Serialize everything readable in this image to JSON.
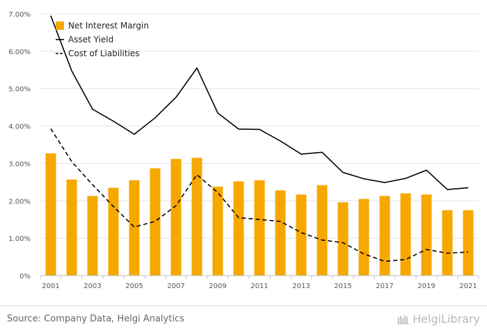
{
  "chart_data": {
    "type": "bar",
    "categories": [
      "2001",
      "2002",
      "2003",
      "2004",
      "2005",
      "2006",
      "2007",
      "2008",
      "2009",
      "2010",
      "2011",
      "2012",
      "2013",
      "2014",
      "2015",
      "2016",
      "2017",
      "2018",
      "2019",
      "2020",
      "2021"
    ],
    "x_tick_labels": [
      "2001",
      "2003",
      "2005",
      "2007",
      "2009",
      "2011",
      "2013",
      "2015",
      "2017",
      "2019",
      "2021"
    ],
    "series": [
      {
        "name": "Net Interest Margin",
        "kind": "bar",
        "color": "#f7a800",
        "values": [
          3.27,
          2.57,
          2.13,
          2.35,
          2.55,
          2.87,
          3.12,
          3.15,
          2.38,
          2.52,
          2.55,
          2.28,
          2.17,
          2.42,
          1.96,
          2.05,
          2.13,
          2.2,
          2.17,
          1.75,
          1.75
        ]
      },
      {
        "name": "Asset Yield",
        "kind": "line",
        "style": "solid",
        "color": "#000000",
        "values": [
          6.95,
          5.48,
          4.45,
          4.13,
          3.78,
          4.22,
          4.77,
          5.55,
          4.35,
          3.92,
          3.91,
          3.6,
          3.25,
          3.3,
          2.76,
          2.59,
          2.49,
          2.6,
          2.82,
          2.3,
          2.35
        ]
      },
      {
        "name": "Cost of Liabilities",
        "kind": "line",
        "style": "dashed",
        "color": "#000000",
        "values": [
          3.93,
          3.05,
          2.43,
          1.85,
          1.3,
          1.45,
          1.87,
          2.7,
          2.22,
          1.55,
          1.5,
          1.45,
          1.15,
          0.95,
          0.88,
          0.58,
          0.38,
          0.43,
          0.7,
          0.6,
          0.63
        ]
      }
    ],
    "y_ticks": [
      "0%",
      "1.00%",
      "2.00%",
      "3.00%",
      "4.00%",
      "5.00%",
      "6.00%",
      "7.00%"
    ],
    "ylim": [
      0,
      7
    ],
    "xlabel": "",
    "ylabel": "",
    "title": "",
    "legend_position": "top-left",
    "grid": true
  },
  "footer": {
    "source": "Source: Company Data, Helgi Analytics",
    "brand": "HelgiLibrary"
  }
}
